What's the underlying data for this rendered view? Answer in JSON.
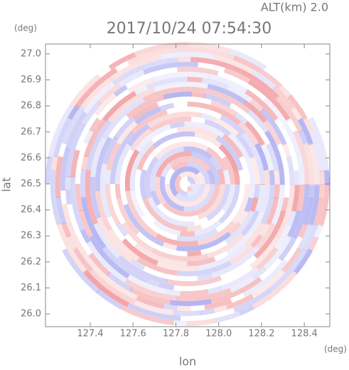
{
  "chart_data": {
    "type": "radar-ppi",
    "title": "2017/10/24 07:54:30",
    "subtitle": "ALT(km) 2.0",
    "x_label": "lon",
    "y_label": "lat",
    "x_unit": "(deg)",
    "y_unit": "(deg)",
    "xlim": [
      127.191,
      128.519
    ],
    "ylim": [
      25.951,
      27.038
    ],
    "xticks": [
      127.4,
      127.6,
      127.8,
      {
        "value": 128.0,
        "label": "128.0"
      },
      128.2,
      128.4
    ],
    "yticks": [
      {
        "value": 26.0,
        "label": "26.0"
      },
      26.1,
      26.2,
      26.3,
      26.4,
      26.5,
      26.6,
      26.7,
      26.8,
      26.9,
      {
        "value": 27.0,
        "label": "27.0"
      }
    ],
    "center": [
      127.854,
      26.5
    ]
  }
}
